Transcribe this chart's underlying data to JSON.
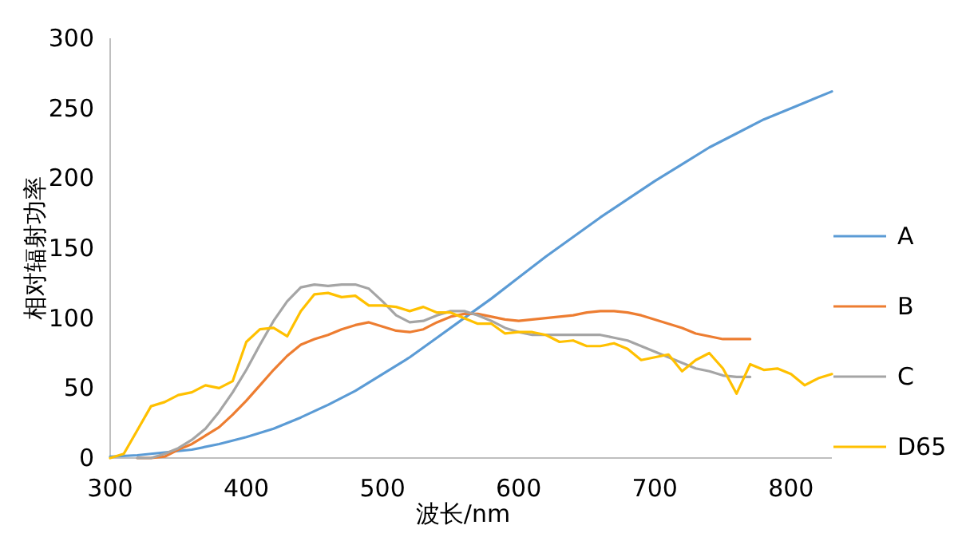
{
  "chart_data": {
    "type": "line",
    "xlabel": "波长/nm",
    "ylabel": "相对辐射功率",
    "xlim": [
      300,
      830
    ],
    "xticks": [
      300,
      400,
      500,
      600,
      700,
      800
    ],
    "ylim": [
      0,
      300
    ],
    "yticks": [
      0,
      50,
      100,
      150,
      200,
      250,
      300
    ],
    "grid": false,
    "legend": "right",
    "marker": "none",
    "line_style": "solid",
    "series": [
      {
        "name": "A",
        "color": "#5b9bd5",
        "x": [
          300,
          320,
          340,
          360,
          380,
          400,
          420,
          440,
          460,
          480,
          500,
          520,
          540,
          560,
          580,
          600,
          620,
          640,
          660,
          680,
          700,
          720,
          740,
          760,
          780,
          800,
          830
        ],
        "values": [
          1,
          2,
          4,
          6,
          10,
          15,
          21,
          29,
          38,
          48,
          60,
          72,
          86,
          100,
          114,
          129,
          144,
          158,
          172,
          185,
          198,
          210,
          222,
          232,
          242,
          250,
          262
        ]
      },
      {
        "name": "B",
        "color": "#ed7d31",
        "x": [
          320,
          330,
          340,
          350,
          360,
          370,
          380,
          390,
          400,
          410,
          420,
          430,
          440,
          450,
          460,
          470,
          480,
          490,
          500,
          510,
          520,
          530,
          540,
          550,
          560,
          570,
          580,
          590,
          600,
          610,
          620,
          630,
          640,
          650,
          660,
          670,
          680,
          690,
          700,
          710,
          720,
          730,
          740,
          750,
          760,
          770
        ],
        "values": [
          0,
          0,
          1,
          6,
          10,
          16,
          22,
          31,
          41,
          52,
          63,
          73,
          81,
          85,
          88,
          92,
          95,
          97,
          94,
          91,
          90,
          92,
          97,
          101,
          103,
          103,
          101,
          99,
          98,
          99,
          100,
          101,
          102,
          104,
          105,
          105,
          104,
          102,
          99,
          96,
          93,
          89,
          87,
          85,
          85,
          85
        ]
      },
      {
        "name": "C",
        "color": "#a5a5a5",
        "x": [
          320,
          330,
          340,
          350,
          360,
          370,
          380,
          390,
          400,
          410,
          420,
          430,
          440,
          450,
          460,
          470,
          480,
          490,
          500,
          510,
          520,
          530,
          540,
          550,
          560,
          570,
          580,
          590,
          600,
          610,
          620,
          630,
          640,
          650,
          660,
          670,
          680,
          690,
          700,
          710,
          720,
          730,
          740,
          750,
          760,
          770
        ],
        "values": [
          0,
          0,
          3,
          7,
          13,
          21,
          33,
          47,
          63,
          81,
          98,
          112,
          122,
          124,
          123,
          124,
          124,
          121,
          112,
          102,
          97,
          98,
          102,
          105,
          105,
          102,
          98,
          93,
          90,
          88,
          88,
          88,
          88,
          88,
          88,
          86,
          84,
          80,
          76,
          72,
          68,
          64,
          62,
          59,
          58,
          58
        ]
      },
      {
        "name": "D65",
        "color": "#ffc000",
        "x": [
          300,
          310,
          320,
          330,
          340,
          350,
          360,
          370,
          380,
          390,
          400,
          410,
          420,
          430,
          440,
          450,
          460,
          470,
          480,
          490,
          500,
          510,
          520,
          530,
          540,
          550,
          560,
          570,
          580,
          590,
          600,
          610,
          620,
          630,
          640,
          650,
          660,
          670,
          680,
          690,
          700,
          710,
          720,
          730,
          740,
          750,
          760,
          770,
          780,
          790,
          800,
          810,
          820,
          830
        ],
        "values": [
          0,
          3,
          20,
          37,
          40,
          45,
          47,
          52,
          50,
          55,
          83,
          92,
          93,
          87,
          105,
          117,
          118,
          115,
          116,
          109,
          109,
          108,
          105,
          108,
          104,
          104,
          100,
          96,
          96,
          89,
          90,
          90,
          88,
          83,
          84,
          80,
          80,
          82,
          78,
          70,
          72,
          74,
          62,
          70,
          75,
          64,
          46,
          67,
          63,
          64,
          60,
          52,
          57,
          60
        ]
      }
    ]
  }
}
